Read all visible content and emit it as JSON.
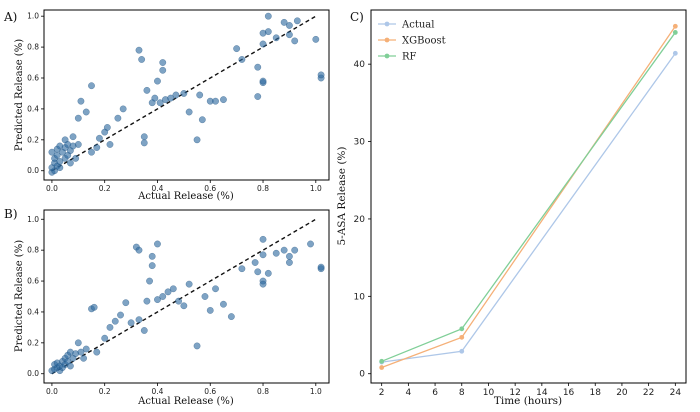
{
  "chart_data": [
    {
      "panel": "A)",
      "type": "scatter",
      "xlabel": "Actual Release (%)",
      "ylabel": "Predicted Release (%)",
      "xlim": [
        -0.03,
        1.05
      ],
      "ylim": [
        -0.06,
        1.04
      ],
      "xticks": [
        "0.0",
        "0.2",
        "0.4",
        "0.6",
        "0.8",
        "1.0"
      ],
      "yticks": [
        "0.0",
        "0.2",
        "0.4",
        "0.6",
        "0.8",
        "1.0"
      ],
      "reference_line": {
        "style": "dashed",
        "from": [
          0.0,
          0.0
        ],
        "to": [
          1.0,
          1.0
        ]
      },
      "point_color": "#2f6aa0",
      "points": [
        [
          0.0,
          -0.01
        ],
        [
          0.01,
          0.0
        ],
        [
          0.0,
          0.02
        ],
        [
          0.01,
          0.05
        ],
        [
          0.02,
          0.03
        ],
        [
          0.01,
          0.08
        ],
        [
          0.02,
          0.1
        ],
        [
          0.0,
          0.12
        ],
        [
          0.03,
          0.06
        ],
        [
          0.02,
          0.14
        ],
        [
          0.03,
          0.16
        ],
        [
          0.04,
          0.12
        ],
        [
          0.03,
          0.02
        ],
        [
          0.05,
          0.08
        ],
        [
          0.05,
          0.15
        ],
        [
          0.05,
          0.2
        ],
        [
          0.06,
          0.1
        ],
        [
          0.06,
          0.17
        ],
        [
          0.07,
          0.05
        ],
        [
          0.07,
          0.13
        ],
        [
          0.08,
          0.22
        ],
        [
          0.08,
          0.16
        ],
        [
          0.09,
          0.08
        ],
        [
          0.1,
          0.17
        ],
        [
          0.1,
          0.34
        ],
        [
          0.11,
          0.45
        ],
        [
          0.13,
          0.38
        ],
        [
          0.15,
          0.12
        ],
        [
          0.15,
          0.55
        ],
        [
          0.17,
          0.15
        ],
        [
          0.18,
          0.21
        ],
        [
          0.2,
          0.25
        ],
        [
          0.21,
          0.28
        ],
        [
          0.22,
          0.17
        ],
        [
          0.25,
          0.34
        ],
        [
          0.27,
          0.4
        ],
        [
          0.33,
          0.78
        ],
        [
          0.34,
          0.72
        ],
        [
          0.35,
          0.18
        ],
        [
          0.35,
          0.22
        ],
        [
          0.36,
          0.52
        ],
        [
          0.38,
          0.44
        ],
        [
          0.39,
          0.47
        ],
        [
          0.4,
          0.58
        ],
        [
          0.41,
          0.44
        ],
        [
          0.42,
          0.65
        ],
        [
          0.42,
          0.7
        ],
        [
          0.43,
          0.46
        ],
        [
          0.45,
          0.47
        ],
        [
          0.47,
          0.49
        ],
        [
          0.5,
          0.5
        ],
        [
          0.52,
          0.38
        ],
        [
          0.55,
          0.2
        ],
        [
          0.56,
          0.49
        ],
        [
          0.57,
          0.33
        ],
        [
          0.6,
          0.45
        ],
        [
          0.62,
          0.45
        ],
        [
          0.65,
          0.46
        ],
        [
          0.7,
          0.79
        ],
        [
          0.72,
          0.72
        ],
        [
          0.78,
          0.67
        ],
        [
          0.78,
          0.48
        ],
        [
          0.8,
          0.57
        ],
        [
          0.8,
          0.58
        ],
        [
          0.8,
          0.82
        ],
        [
          0.8,
          0.89
        ],
        [
          0.82,
          0.9
        ],
        [
          0.82,
          1.0
        ],
        [
          0.85,
          0.86
        ],
        [
          0.88,
          0.96
        ],
        [
          0.9,
          0.94
        ],
        [
          0.9,
          0.88
        ],
        [
          0.92,
          0.84
        ],
        [
          0.93,
          0.97
        ],
        [
          1.0,
          0.85
        ],
        [
          1.02,
          0.6
        ],
        [
          1.02,
          0.62
        ]
      ]
    },
    {
      "panel": "B)",
      "type": "scatter",
      "xlabel": "Actual Release (%)",
      "ylabel": "Predicted Release (%)",
      "xlim": [
        -0.03,
        1.05
      ],
      "ylim": [
        -0.06,
        1.06
      ],
      "xticks": [
        "0.0",
        "0.2",
        "0.4",
        "0.6",
        "0.8",
        "1.0"
      ],
      "yticks": [
        "0.0",
        "0.2",
        "0.4",
        "0.6",
        "0.8",
        "1.0"
      ],
      "reference_line": {
        "style": "dashed",
        "from": [
          0.0,
          0.0
        ],
        "to": [
          1.0,
          1.0
        ]
      },
      "point_color": "#2f6aa0",
      "points": [
        [
          0.0,
          0.02
        ],
        [
          0.01,
          0.03
        ],
        [
          0.02,
          0.04
        ],
        [
          0.01,
          0.06
        ],
        [
          0.02,
          0.07
        ],
        [
          0.03,
          0.05
        ],
        [
          0.03,
          0.02
        ],
        [
          0.04,
          0.08
        ],
        [
          0.04,
          0.04
        ],
        [
          0.05,
          0.1
        ],
        [
          0.05,
          0.06
        ],
        [
          0.06,
          0.12
        ],
        [
          0.06,
          0.08
        ],
        [
          0.07,
          0.14
        ],
        [
          0.07,
          0.05
        ],
        [
          0.08,
          0.1
        ],
        [
          0.09,
          0.13
        ],
        [
          0.1,
          0.2
        ],
        [
          0.11,
          0.14
        ],
        [
          0.12,
          0.1
        ],
        [
          0.13,
          0.16
        ],
        [
          0.15,
          0.42
        ],
        [
          0.16,
          0.43
        ],
        [
          0.17,
          0.14
        ],
        [
          0.2,
          0.23
        ],
        [
          0.22,
          0.3
        ],
        [
          0.24,
          0.34
        ],
        [
          0.26,
          0.38
        ],
        [
          0.28,
          0.46
        ],
        [
          0.3,
          0.33
        ],
        [
          0.32,
          0.82
        ],
        [
          0.33,
          0.8
        ],
        [
          0.33,
          0.35
        ],
        [
          0.35,
          0.28
        ],
        [
          0.36,
          0.47
        ],
        [
          0.37,
          0.6
        ],
        [
          0.38,
          0.7
        ],
        [
          0.38,
          0.76
        ],
        [
          0.4,
          0.84
        ],
        [
          0.4,
          0.48
        ],
        [
          0.42,
          0.5
        ],
        [
          0.44,
          0.53
        ],
        [
          0.46,
          0.55
        ],
        [
          0.48,
          0.47
        ],
        [
          0.5,
          0.44
        ],
        [
          0.52,
          0.58
        ],
        [
          0.55,
          0.18
        ],
        [
          0.58,
          0.5
        ],
        [
          0.6,
          0.41
        ],
        [
          0.62,
          0.55
        ],
        [
          0.65,
          0.45
        ],
        [
          0.68,
          0.37
        ],
        [
          0.72,
          0.68
        ],
        [
          0.77,
          0.72
        ],
        [
          0.78,
          0.66
        ],
        [
          0.8,
          0.77
        ],
        [
          0.8,
          0.87
        ],
        [
          0.8,
          0.6
        ],
        [
          0.8,
          0.58
        ],
        [
          0.82,
          0.65
        ],
        [
          0.85,
          0.78
        ],
        [
          0.88,
          0.8
        ],
        [
          0.9,
          0.76
        ],
        [
          0.9,
          0.72
        ],
        [
          0.92,
          0.8
        ],
        [
          0.98,
          0.84
        ],
        [
          1.02,
          0.68
        ],
        [
          1.02,
          0.69
        ]
      ]
    },
    {
      "panel": "C)",
      "type": "line",
      "xlabel": "Time (hours)",
      "ylabel": "5-ASA Release (%)",
      "xlim": [
        1.2,
        24.8
      ],
      "ylim": [
        -1.2,
        47
      ],
      "xticks": [
        "2",
        "4",
        "6",
        "8",
        "10",
        "12",
        "14",
        "16",
        "18",
        "20",
        "22",
        "24"
      ],
      "yticks": [
        "0",
        "10",
        "20",
        "30",
        "40"
      ],
      "legend_position": "top-left",
      "x": [
        2,
        8,
        24
      ],
      "series": [
        {
          "name": "Actual",
          "color": "#aec7e8",
          "values": [
            1.5,
            2.9,
            41.4
          ]
        },
        {
          "name": "XGBoost",
          "color": "#f5b078",
          "values": [
            0.8,
            4.7,
            44.9
          ]
        },
        {
          "name": "RF",
          "color": "#80cf98",
          "values": [
            1.6,
            5.8,
            44.1
          ]
        }
      ]
    }
  ]
}
